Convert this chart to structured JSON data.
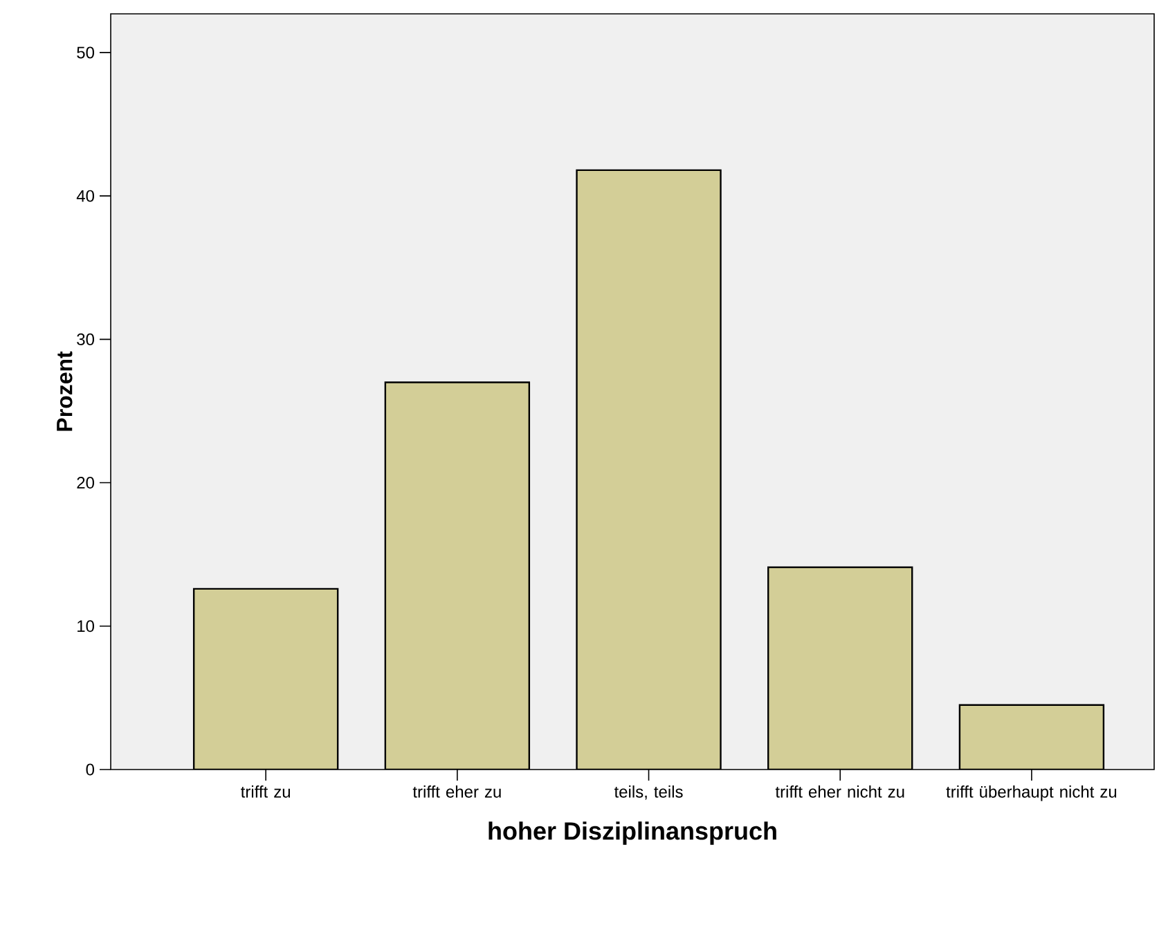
{
  "chart_data": {
    "type": "bar",
    "xlabel": "hoher Disziplinanspruch",
    "ylabel": "Prozent",
    "categories": [
      "trifft zu",
      "trifft eher zu",
      "teils, teils",
      "trifft eher nicht zu",
      "trifft überhaupt nicht zu"
    ],
    "values": [
      12.6,
      27.0,
      41.8,
      14.1,
      4.5
    ],
    "color": "#d3ce97",
    "ylim": [
      0,
      52.7
    ],
    "yticks": [
      0,
      10,
      20,
      30,
      40,
      50
    ]
  }
}
